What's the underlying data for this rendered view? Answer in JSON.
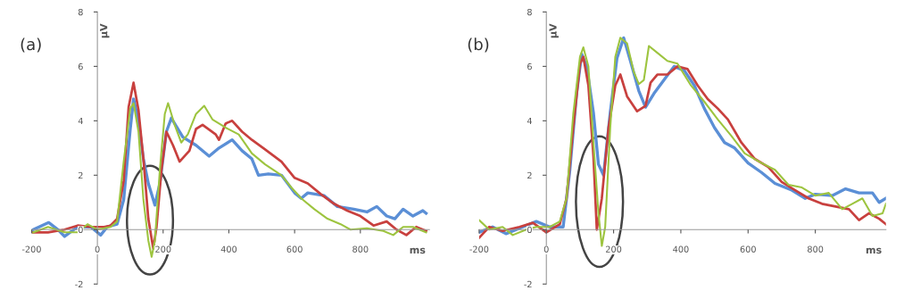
{
  "chart_data": [
    {
      "type": "line",
      "title": "(a)",
      "xlabel": "ms",
      "ylabel": "µV",
      "xlim": [
        -200,
        1010
      ],
      "ylim": [
        -2,
        8
      ],
      "xticks": [
        -200,
        0,
        200,
        400,
        600,
        800
      ],
      "yticks": [
        -2,
        0,
        2,
        4,
        6,
        8
      ],
      "grid": false,
      "legend": false,
      "series": [
        {
          "color": "#5b8fd6",
          "x": [
            -195,
            -148,
            -120,
            -100,
            -60,
            -20,
            10,
            30,
            60,
            80,
            100,
            110,
            125,
            140,
            155,
            175,
            190,
            210,
            225,
            260,
            300,
            340,
            370,
            410,
            440,
            470,
            490,
            520,
            560,
            600,
            620,
            640,
            690,
            730,
            780,
            820,
            850,
            880,
            905,
            930,
            960,
            990,
            1000
          ],
          "values": [
            0,
            0.26,
            0,
            -0.25,
            0.1,
            0.1,
            -0.2,
            0.1,
            0.2,
            1.1,
            3.7,
            4.8,
            4.0,
            2.6,
            1.7,
            0.9,
            1.7,
            3.6,
            4.1,
            3.4,
            3.1,
            2.7,
            3.0,
            3.3,
            2.9,
            2.6,
            2.0,
            2.05,
            2.0,
            1.35,
            1.15,
            1.35,
            1.25,
            0.85,
            0.75,
            0.65,
            0.85,
            0.5,
            0.4,
            0.75,
            0.5,
            0.7,
            0.6
          ]
        },
        {
          "color": "#c8403e",
          "x": [
            -195,
            -150,
            -100,
            -60,
            -20,
            20,
            40,
            60,
            80,
            95,
            110,
            125,
            140,
            155,
            170,
            180,
            195,
            210,
            230,
            250,
            280,
            300,
            320,
            360,
            370,
            390,
            410,
            440,
            470,
            510,
            560,
            600,
            640,
            680,
            720,
            760,
            800,
            840,
            880,
            910,
            940,
            970,
            1000
          ],
          "values": [
            -0.1,
            -0.1,
            0,
            0.15,
            0.1,
            0.1,
            0.15,
            0.4,
            1.8,
            4.5,
            5.4,
            4.4,
            2.6,
            0.4,
            -0.7,
            0.1,
            2.2,
            3.6,
            3.1,
            2.5,
            2.9,
            3.7,
            3.85,
            3.5,
            3.3,
            3.9,
            4.0,
            3.6,
            3.3,
            2.95,
            2.5,
            1.9,
            1.7,
            1.3,
            0.95,
            0.7,
            0.5,
            0.15,
            0.3,
            0,
            -0.2,
            0.1,
            -0.05
          ]
        },
        {
          "color": "#9dc43f",
          "x": [
            -195,
            -150,
            -100,
            -60,
            -30,
            0,
            40,
            60,
            80,
            100,
            110,
            125,
            140,
            155,
            165,
            175,
            190,
            205,
            215,
            235,
            255,
            275,
            300,
            325,
            350,
            390,
            430,
            470,
            510,
            560,
            590,
            620,
            660,
            700,
            740,
            770,
            820,
            870,
            900,
            930,
            960,
            1000
          ],
          "values": [
            -0.1,
            0.1,
            -0.1,
            -0.1,
            0.2,
            0,
            0.1,
            0.3,
            2.5,
            4.45,
            4.65,
            3.6,
            1.1,
            -0.4,
            -1.0,
            -0.4,
            2.2,
            4.25,
            4.65,
            3.85,
            3.2,
            3.5,
            4.25,
            4.55,
            4.05,
            3.75,
            3.5,
            2.8,
            2.4,
            2.0,
            1.55,
            1.15,
            0.75,
            0.4,
            0.2,
            0,
            0.05,
            -0.05,
            -0.2,
            0.1,
            0.1,
            -0.1
          ]
        }
      ]
    },
    {
      "type": "line",
      "title": "(b)",
      "xlabel": "ms",
      "ylabel": "µV",
      "xlim": [
        -200,
        1010
      ],
      "ylim": [
        -2,
        8
      ],
      "xticks": [
        -200,
        0,
        200,
        400,
        600,
        800
      ],
      "yticks": [
        -2,
        0,
        2,
        4,
        6,
        8
      ],
      "grid": false,
      "legend": false,
      "series": [
        {
          "color": "#5b8fd6",
          "x": [
            -200,
            -160,
            -120,
            -70,
            -30,
            10,
            50,
            70,
            90,
            105,
            120,
            140,
            155,
            170,
            190,
            210,
            230,
            250,
            275,
            295,
            320,
            350,
            380,
            410,
            440,
            470,
            500,
            530,
            560,
            600,
            640,
            680,
            730,
            770,
            800,
            850,
            890,
            930,
            970,
            990,
            1010
          ],
          "values": [
            -0.1,
            0.1,
            -0.15,
            0.1,
            0.3,
            0.1,
            0.1,
            2.2,
            5.0,
            6.45,
            6.0,
            4.3,
            2.4,
            2.0,
            4.3,
            6.3,
            7.05,
            6.2,
            5.1,
            4.5,
            5.0,
            5.5,
            6.0,
            5.85,
            5.3,
            4.45,
            3.75,
            3.2,
            3.0,
            2.45,
            2.1,
            1.7,
            1.45,
            1.15,
            1.3,
            1.25,
            1.5,
            1.35,
            1.35,
            1.0,
            1.15
          ]
        },
        {
          "color": "#c8403e",
          "x": [
            -200,
            -170,
            -130,
            -80,
            -40,
            0,
            40,
            60,
            80,
            100,
            110,
            125,
            140,
            150,
            165,
            185,
            205,
            220,
            240,
            270,
            295,
            310,
            330,
            360,
            390,
            420,
            450,
            480,
            510,
            540,
            580,
            620,
            660,
            700,
            740,
            780,
            820,
            860,
            900,
            930,
            960,
            990,
            1010
          ],
          "values": [
            -0.3,
            0.1,
            -0.05,
            0.1,
            0.25,
            -0.1,
            0.2,
            1.15,
            3.75,
            6.1,
            6.35,
            5.3,
            2.7,
            0.0,
            1.15,
            3.75,
            5.3,
            5.7,
            4.9,
            4.35,
            4.55,
            5.4,
            5.7,
            5.7,
            6.0,
            5.9,
            5.3,
            4.8,
            4.45,
            4.05,
            3.2,
            2.6,
            2.3,
            1.75,
            1.45,
            1.15,
            0.95,
            0.85,
            0.75,
            0.35,
            0.6,
            0.4,
            0.2
          ]
        },
        {
          "color": "#9dc43f",
          "x": [
            -200,
            -170,
            -130,
            -100,
            -60,
            -30,
            10,
            40,
            60,
            80,
            100,
            110,
            125,
            140,
            155,
            165,
            175,
            190,
            205,
            220,
            240,
            260,
            275,
            290,
            305,
            330,
            360,
            390,
            430,
            470,
            510,
            550,
            590,
            640,
            680,
            720,
            760,
            800,
            840,
            880,
            910,
            940,
            970,
            1000,
            1010
          ],
          "values": [
            0.35,
            0,
            0.1,
            -0.2,
            0,
            0.1,
            0.1,
            0.3,
            1.15,
            4.25,
            6.35,
            6.7,
            6.0,
            3.2,
            0.6,
            -0.6,
            0.1,
            3.75,
            6.35,
            7.05,
            6.85,
            5.8,
            5.35,
            5.5,
            6.75,
            6.5,
            6.2,
            6.1,
            5.3,
            4.7,
            4.05,
            3.45,
            2.8,
            2.45,
            2.2,
            1.65,
            1.55,
            1.25,
            1.35,
            0.75,
            0.95,
            1.15,
            0.5,
            0.6,
            0.95
          ]
        }
      ]
    }
  ]
}
